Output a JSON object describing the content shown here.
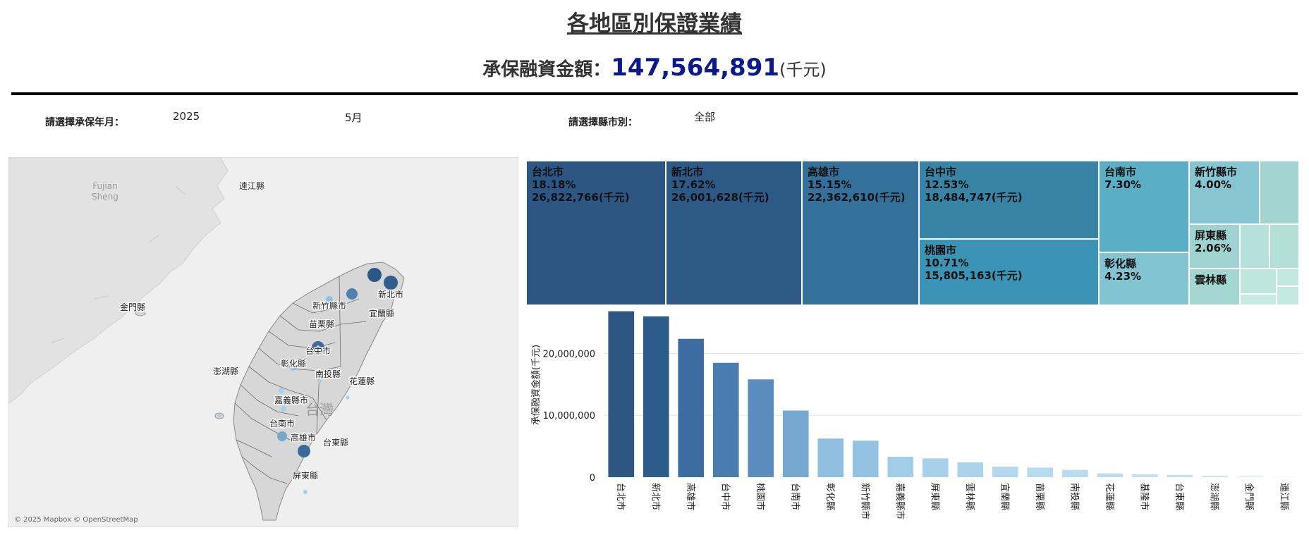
{
  "header": {
    "title": "各地區別保證業績",
    "total_label": "承保融資金額：",
    "total_value": "147,564,891",
    "total_unit": "(千元)"
  },
  "filters": {
    "period_label": "請選擇承保年月：",
    "year": "2025",
    "month": "5月",
    "county_label": "請選擇縣市別：",
    "county": "全部"
  },
  "map": {
    "region_labels": [
      "Fujian",
      "Sheng"
    ],
    "island_label": "台灣",
    "attribution": "© 2025 Mapbox © OpenStreetMap",
    "places": [
      {
        "name": "連江縣"
      },
      {
        "name": "金門縣"
      },
      {
        "name": "澎湖縣"
      },
      {
        "name": "新北市"
      },
      {
        "name": "新竹縣市"
      },
      {
        "name": "宜蘭縣"
      },
      {
        "name": "苗栗縣"
      },
      {
        "name": "台中市"
      },
      {
        "name": "彰化縣"
      },
      {
        "name": "南投縣"
      },
      {
        "name": "花蓮縣"
      },
      {
        "name": "嘉義縣市"
      },
      {
        "name": "台南市"
      },
      {
        "name": "高雄市"
      },
      {
        "name": "台東縣"
      },
      {
        "name": "屏東縣"
      }
    ]
  },
  "colors": {
    "dark": "#2c5784",
    "mid": "#4f81b0",
    "light": "#a7d1ea",
    "teal": "#3b93b5",
    "mint": "#a2d5d0"
  },
  "chart_data": [
    {
      "type": "treemap",
      "tiles": [
        {
          "name": "台北市",
          "pct": "18.18%",
          "amount": "26,822,766(千元)"
        },
        {
          "name": "新北市",
          "pct": "17.62%",
          "amount": "26,001,628(千元)"
        },
        {
          "name": "高雄市",
          "pct": "15.15%",
          "amount": "22,362,610(千元)"
        },
        {
          "name": "台中市",
          "pct": "12.53%",
          "amount": "18,484,747(千元)"
        },
        {
          "name": "桃園市",
          "pct": "10.71%",
          "amount": "15,805,163(千元)"
        },
        {
          "name": "台南市",
          "pct": "7.30%"
        },
        {
          "name": "彰化縣",
          "pct": "4.23%"
        },
        {
          "name": "新竹縣市",
          "pct": "4.00%"
        },
        {
          "name": "屏東縣",
          "pct": "2.06%"
        },
        {
          "name": "雲林縣"
        }
      ]
    },
    {
      "type": "bar",
      "ylabel": "承保融資金額(千元)",
      "ylim": [
        0,
        27000000
      ],
      "yticks": [
        0,
        10000000,
        20000000
      ],
      "ytick_labels": [
        "0",
        "10,000,000",
        "20,000,000"
      ],
      "categories": [
        "台北市",
        "新北市",
        "高雄市",
        "台中市",
        "桃園市",
        "台南市",
        "彰化縣",
        "新竹縣市",
        "嘉義縣市",
        "屏東縣",
        "雲林縣",
        "宜蘭縣",
        "苗栗縣",
        "南投縣",
        "花蓮縣",
        "基隆市",
        "台東縣",
        "澎湖縣",
        "金門縣",
        "連江縣"
      ],
      "values": [
        26822766,
        26001628,
        22362610,
        18484747,
        15805163,
        10772000,
        6242000,
        5903000,
        3300000,
        3040000,
        2400000,
        1700000,
        1550000,
        1180000,
        620000,
        480000,
        370000,
        240000,
        120000,
        40000
      ]
    }
  ]
}
